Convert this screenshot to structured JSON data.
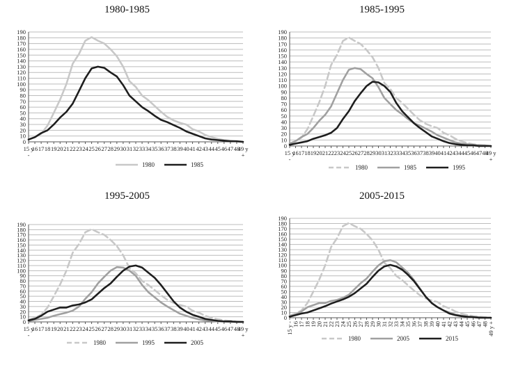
{
  "colors": {
    "s1980": "#c8c8c8",
    "s1985": "#a0a0a0",
    "s1995": "#8c8c8c",
    "dark": "#1e1e1e",
    "grid": "#bcbcbc"
  },
  "chart_data": [
    {
      "type": "line",
      "title": "1980-1985",
      "xlabel": "",
      "ylabel": "",
      "ylim": [
        0,
        190
      ],
      "yticks": [
        0,
        10,
        20,
        30,
        40,
        50,
        60,
        70,
        80,
        90,
        100,
        110,
        120,
        130,
        140,
        150,
        160,
        170,
        180,
        190
      ],
      "grid": true,
      "legend": "bottom",
      "categories": [
        "15 y -",
        "16",
        "17",
        "18",
        "19",
        "20",
        "21",
        "22",
        "23",
        "24",
        "25",
        "26",
        "27",
        "28",
        "29",
        "30",
        "31",
        "32",
        "33",
        "34",
        "35",
        "36",
        "37",
        "38",
        "39",
        "40",
        "41",
        "42",
        "43",
        "44",
        "45",
        "46",
        "47",
        "48",
        "49 y +"
      ],
      "series": [
        {
          "name": "1980",
          "style": "solid-light",
          "values": [
            4,
            8,
            14,
            28,
            50,
            73,
            100,
            135,
            152,
            175,
            181,
            175,
            170,
            160,
            148,
            130,
            105,
            95,
            80,
            72,
            62,
            52,
            43,
            37,
            33,
            30,
            22,
            18,
            12,
            8,
            5,
            3,
            2,
            1,
            0
          ]
        },
        {
          "name": "1985",
          "style": "solid-dark",
          "values": [
            4,
            8,
            15,
            20,
            30,
            42,
            52,
            66,
            88,
            110,
            127,
            130,
            128,
            120,
            113,
            98,
            80,
            70,
            60,
            53,
            45,
            38,
            34,
            29,
            24,
            18,
            14,
            10,
            6,
            4,
            3,
            2,
            1,
            1,
            0
          ]
        }
      ]
    },
    {
      "type": "line",
      "title": "1985-1995",
      "xlabel": "",
      "ylabel": "",
      "ylim": [
        0,
        190
      ],
      "yticks": [
        0,
        10,
        20,
        30,
        40,
        50,
        60,
        70,
        80,
        90,
        100,
        110,
        120,
        130,
        140,
        150,
        160,
        170,
        180,
        190
      ],
      "grid": true,
      "legend": "bottom",
      "categories": [
        "15 y -",
        "16",
        "17",
        "18",
        "19",
        "20",
        "21",
        "22",
        "23",
        "24",
        "25",
        "26",
        "27",
        "28",
        "29",
        "30",
        "31",
        "32",
        "33",
        "34",
        "35",
        "36",
        "37",
        "38",
        "39",
        "40",
        "41",
        "42",
        "43",
        "44",
        "45",
        "46",
        "47",
        "48",
        "49 y +"
      ],
      "series": [
        {
          "name": "1980",
          "style": "dashed-light",
          "values": [
            4,
            8,
            14,
            28,
            50,
            73,
            100,
            135,
            152,
            175,
            181,
            175,
            170,
            160,
            148,
            130,
            105,
            95,
            80,
            72,
            62,
            52,
            43,
            37,
            33,
            30,
            22,
            18,
            12,
            8,
            5,
            3,
            2,
            1,
            0
          ]
        },
        {
          "name": "1985",
          "style": "solid-medium",
          "values": [
            4,
            8,
            15,
            20,
            30,
            42,
            52,
            66,
            88,
            110,
            127,
            130,
            128,
            120,
            113,
            98,
            80,
            70,
            60,
            53,
            45,
            38,
            34,
            29,
            24,
            18,
            14,
            10,
            6,
            4,
            3,
            2,
            1,
            1,
            0
          ]
        },
        {
          "name": "1995",
          "style": "solid-dark",
          "values": [
            2,
            4,
            6,
            8,
            12,
            15,
            18,
            22,
            30,
            45,
            58,
            75,
            88,
            100,
            107,
            106,
            100,
            90,
            72,
            58,
            48,
            38,
            30,
            23,
            16,
            12,
            8,
            5,
            3,
            2,
            1,
            1,
            0,
            0,
            0
          ]
        }
      ]
    },
    {
      "type": "line",
      "title": "1995-2005",
      "xlabel": "",
      "ylabel": "",
      "ylim": [
        0,
        190
      ],
      "yticks": [
        0,
        10,
        20,
        30,
        40,
        50,
        60,
        70,
        80,
        90,
        100,
        110,
        120,
        130,
        140,
        150,
        160,
        170,
        180,
        190
      ],
      "grid": true,
      "legend": "bottom",
      "categories": [
        "15 y -",
        "16",
        "17",
        "18",
        "19",
        "20",
        "21",
        "22",
        "23",
        "24",
        "25",
        "26",
        "27",
        "28",
        "29",
        "30",
        "31",
        "32",
        "33",
        "34",
        "35",
        "36",
        "37",
        "38",
        "39",
        "40",
        "41",
        "42",
        "43",
        "44",
        "45",
        "46",
        "47",
        "48",
        "49 y +"
      ],
      "series": [
        {
          "name": "1980",
          "style": "dashed-light",
          "values": [
            4,
            8,
            14,
            28,
            50,
            73,
            100,
            135,
            152,
            175,
            181,
            175,
            170,
            160,
            148,
            130,
            105,
            95,
            80,
            72,
            62,
            52,
            43,
            37,
            33,
            30,
            22,
            18,
            12,
            8,
            5,
            3,
            2,
            1,
            0
          ]
        },
        {
          "name": "1995",
          "style": "solid-medium",
          "values": [
            2,
            4,
            6,
            8,
            12,
            15,
            18,
            22,
            30,
            45,
            58,
            75,
            88,
            100,
            107,
            106,
            100,
            90,
            72,
            58,
            48,
            38,
            30,
            23,
            16,
            12,
            8,
            5,
            3,
            2,
            1,
            1,
            0,
            0,
            0
          ]
        },
        {
          "name": "2005",
          "style": "solid-dark",
          "values": [
            3,
            6,
            12,
            20,
            24,
            28,
            28,
            32,
            34,
            38,
            44,
            55,
            66,
            75,
            88,
            100,
            108,
            110,
            106,
            96,
            86,
            72,
            56,
            40,
            28,
            20,
            14,
            10,
            6,
            4,
            2,
            1,
            1,
            0,
            0
          ]
        }
      ]
    },
    {
      "type": "line",
      "title": "2005-2015",
      "xlabel": "",
      "ylabel": "",
      "ylim": [
        0,
        190
      ],
      "yticks": [
        0,
        10,
        20,
        30,
        40,
        50,
        60,
        70,
        80,
        90,
        100,
        110,
        120,
        130,
        140,
        150,
        160,
        170,
        180,
        190
      ],
      "grid": true,
      "legend": "bottom",
      "categories": [
        "15 y -",
        "16",
        "17",
        "18",
        "19",
        "20",
        "21",
        "22",
        "23",
        "24",
        "25",
        "26",
        "27",
        "28",
        "29",
        "30",
        "31",
        "32",
        "33",
        "34",
        "35",
        "36",
        "37",
        "38",
        "39",
        "40",
        "41",
        "42",
        "43",
        "44",
        "45",
        "46",
        "47",
        "48",
        "49 y +"
      ],
      "series": [
        {
          "name": "1980",
          "style": "dashed-light",
          "values": [
            4,
            8,
            14,
            28,
            50,
            73,
            100,
            135,
            152,
            175,
            181,
            175,
            170,
            160,
            148,
            130,
            105,
            95,
            80,
            72,
            62,
            52,
            43,
            37,
            33,
            30,
            22,
            18,
            12,
            8,
            5,
            3,
            2,
            1,
            0
          ]
        },
        {
          "name": "2005",
          "style": "solid-medium",
          "values": [
            3,
            6,
            12,
            20,
            24,
            28,
            28,
            32,
            34,
            38,
            44,
            55,
            66,
            75,
            88,
            100,
            108,
            110,
            106,
            96,
            86,
            72,
            56,
            40,
            28,
            20,
            14,
            10,
            6,
            4,
            2,
            1,
            1,
            0,
            0
          ]
        },
        {
          "name": "2015",
          "style": "solid-dark",
          "values": [
            2,
            5,
            8,
            10,
            14,
            18,
            22,
            27,
            31,
            35,
            40,
            47,
            56,
            65,
            78,
            90,
            98,
            101,
            98,
            92,
            82,
            70,
            55,
            40,
            28,
            20,
            14,
            8,
            5,
            3,
            2,
            1,
            0,
            0,
            0
          ]
        }
      ]
    }
  ]
}
